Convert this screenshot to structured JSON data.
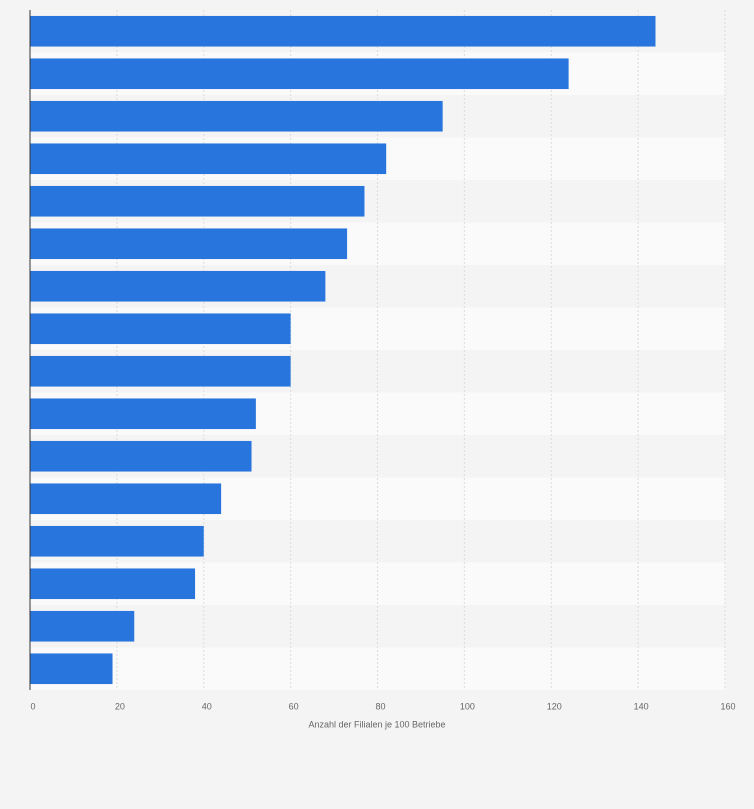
{
  "chart_data": {
    "type": "barh",
    "x_label": "Anzahl der Filialen je 100 Betriebe",
    "categories": [
      null,
      null,
      null,
      null,
      null,
      null,
      null,
      null,
      null,
      null,
      null,
      null,
      null,
      null,
      null,
      null
    ],
    "values": [
      144,
      124,
      95,
      82,
      77,
      73,
      68,
      60,
      60,
      52,
      51,
      44,
      40,
      38,
      24,
      19
    ],
    "color": "#2876dd",
    "xlim": [
      0,
      160
    ],
    "xticks": [
      0,
      20,
      40,
      60,
      80,
      100,
      120,
      140,
      160
    ],
    "grid": true
  }
}
